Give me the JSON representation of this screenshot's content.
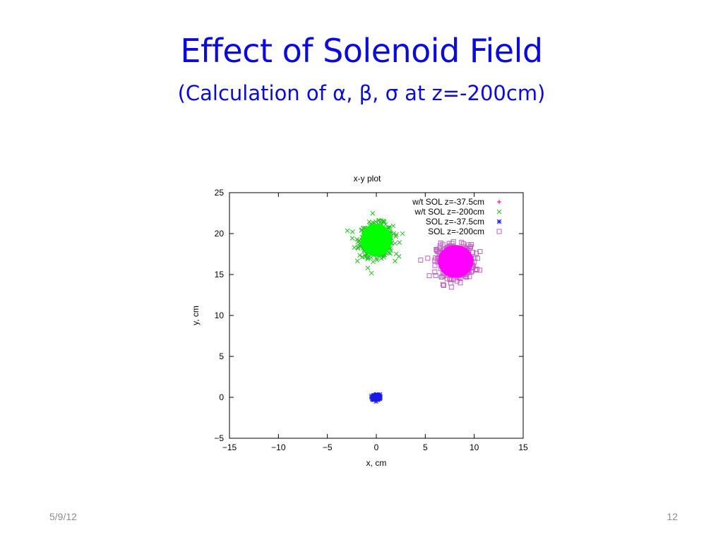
{
  "slide": {
    "title": "Effect of Solenoid Field",
    "subtitle": "(Calculation of α, β, σ at z=-200cm)",
    "date": "5/9/12",
    "page_number": "12"
  },
  "chart_data": {
    "type": "scatter",
    "title": "x-y plot",
    "xlabel": "x, cm",
    "ylabel": "y, cm",
    "xlim": [
      -15,
      15
    ],
    "ylim": [
      -5,
      25
    ],
    "xticks": [
      -15,
      -10,
      -5,
      0,
      5,
      10,
      15
    ],
    "yticks": [
      -5,
      0,
      5,
      10,
      15,
      20,
      25
    ],
    "grid": false,
    "legend_position": "top-right",
    "series": [
      {
        "name": "w/t SOL z=-37.5cm",
        "marker": "plus",
        "color": "#e0007a",
        "center": [
          0.0,
          0.0
        ],
        "spread": [
          0.3,
          0.3
        ],
        "count": 150
      },
      {
        "name": "w/t SOL z=-200cm",
        "marker": "cross",
        "color": "#22c022",
        "center": [
          0.0,
          19.2
        ],
        "spread": [
          1.7,
          2.0
        ],
        "count": 420
      },
      {
        "name": "SOL z=-37.5cm",
        "marker": "star",
        "color": "#1a1ae6",
        "center": [
          0.0,
          0.0
        ],
        "spread": [
          0.35,
          0.35
        ],
        "count": 150
      },
      {
        "name": "SOL z=-200cm",
        "marker": "square",
        "color": "#c060c0",
        "center": [
          8.1,
          16.6
        ],
        "spread": [
          1.9,
          2.0
        ],
        "count": 420
      }
    ],
    "fills": [
      {
        "series": "w/t SOL z=-200cm",
        "color": "#00ff00",
        "center": [
          0.0,
          19.2
        ],
        "radius": [
          1.6,
          2.0
        ]
      },
      {
        "series": "SOL z=-200cm",
        "color": "#ff00ff",
        "center": [
          8.1,
          16.6
        ],
        "radius": [
          1.8,
          2.0
        ]
      }
    ]
  }
}
